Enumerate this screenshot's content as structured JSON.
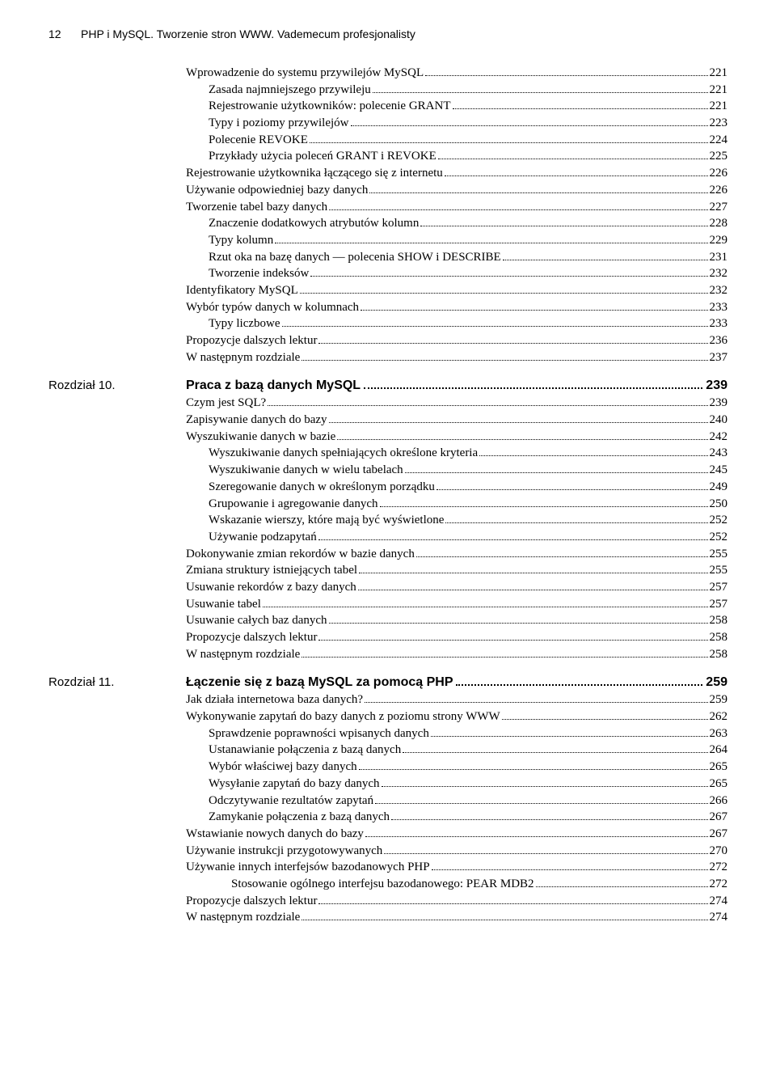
{
  "header": {
    "page_number": "12",
    "title": "PHP i MySQL. Tworzenie stron WWW. Vademecum profesjonalisty"
  },
  "sections": [
    {
      "chapter_label": "",
      "heading": null,
      "entries": [
        {
          "indent": 0,
          "text": "Wprowadzenie do systemu przywilejów MySQL",
          "page": "221"
        },
        {
          "indent": 1,
          "text": "Zasada najmniejszego przywileju",
          "page": "221"
        },
        {
          "indent": 1,
          "text": "Rejestrowanie użytkowników: polecenie GRANT",
          "page": "221"
        },
        {
          "indent": 1,
          "text": "Typy i poziomy przywilejów",
          "page": "223"
        },
        {
          "indent": 1,
          "text": "Polecenie REVOKE",
          "page": "224"
        },
        {
          "indent": 1,
          "text": "Przykłady użycia poleceń GRANT i REVOKE",
          "page": "225"
        },
        {
          "indent": 0,
          "text": "Rejestrowanie użytkownika łączącego się z internetu",
          "page": "226"
        },
        {
          "indent": 0,
          "text": "Używanie odpowiedniej bazy danych",
          "page": "226"
        },
        {
          "indent": 0,
          "text": "Tworzenie tabel bazy danych",
          "page": "227"
        },
        {
          "indent": 1,
          "text": "Znaczenie dodatkowych atrybutów kolumn",
          "page": "228"
        },
        {
          "indent": 1,
          "text": "Typy kolumn",
          "page": "229"
        },
        {
          "indent": 1,
          "text": "Rzut oka na bazę danych — polecenia SHOW i DESCRIBE",
          "page": "231"
        },
        {
          "indent": 1,
          "text": "Tworzenie indeksów",
          "page": "232"
        },
        {
          "indent": 0,
          "text": "Identyfikatory MySQL",
          "page": "232"
        },
        {
          "indent": 0,
          "text": "Wybór typów danych w kolumnach",
          "page": "233"
        },
        {
          "indent": 1,
          "text": "Typy liczbowe",
          "page": "233"
        },
        {
          "indent": 0,
          "text": "Propozycje dalszych lektur",
          "page": "236"
        },
        {
          "indent": 0,
          "text": "W następnym rozdziale",
          "page": "237"
        }
      ]
    },
    {
      "chapter_label": "Rozdział 10.",
      "heading": {
        "title": "Praca z bazą danych MySQL",
        "page": "239"
      },
      "entries": [
        {
          "indent": 0,
          "text": "Czym jest SQL?",
          "page": "239"
        },
        {
          "indent": 0,
          "text": "Zapisywanie danych do bazy",
          "page": "240"
        },
        {
          "indent": 0,
          "text": "Wyszukiwanie danych w bazie",
          "page": "242"
        },
        {
          "indent": 1,
          "text": "Wyszukiwanie danych spełniających określone kryteria",
          "page": "243"
        },
        {
          "indent": 1,
          "text": "Wyszukiwanie danych w wielu tabelach",
          "page": "245"
        },
        {
          "indent": 1,
          "text": "Szeregowanie danych w określonym porządku",
          "page": "249"
        },
        {
          "indent": 1,
          "text": "Grupowanie i agregowanie danych",
          "page": "250"
        },
        {
          "indent": 1,
          "text": "Wskazanie wierszy, które mają być wyświetlone",
          "page": "252"
        },
        {
          "indent": 1,
          "text": "Używanie podzapytań",
          "page": "252"
        },
        {
          "indent": 0,
          "text": "Dokonywanie zmian rekordów w bazie danych",
          "page": "255"
        },
        {
          "indent": 0,
          "text": "Zmiana struktury istniejących tabel",
          "page": "255"
        },
        {
          "indent": 0,
          "text": "Usuwanie rekordów z bazy danych",
          "page": "257"
        },
        {
          "indent": 0,
          "text": "Usuwanie tabel",
          "page": "257"
        },
        {
          "indent": 0,
          "text": "Usuwanie całych baz danych",
          "page": "258"
        },
        {
          "indent": 0,
          "text": "Propozycje dalszych lektur",
          "page": "258"
        },
        {
          "indent": 0,
          "text": "W następnym rozdziale",
          "page": "258"
        }
      ]
    },
    {
      "chapter_label": "Rozdział 11.",
      "heading": {
        "title": "Łączenie się z bazą MySQL za pomocą PHP",
        "page": "259"
      },
      "entries": [
        {
          "indent": 0,
          "text": "Jak działa internetowa baza danych?",
          "page": "259"
        },
        {
          "indent": 0,
          "text": "Wykonywanie zapytań do bazy danych z poziomu strony WWW",
          "page": "262"
        },
        {
          "indent": 1,
          "text": "Sprawdzenie poprawności wpisanych danych",
          "page": "263"
        },
        {
          "indent": 1,
          "text": "Ustanawianie połączenia z bazą danych",
          "page": "264"
        },
        {
          "indent": 1,
          "text": "Wybór właściwej bazy danych",
          "page": "265"
        },
        {
          "indent": 1,
          "text": "Wysyłanie zapytań do bazy danych",
          "page": "265"
        },
        {
          "indent": 1,
          "text": "Odczytywanie rezultatów zapytań",
          "page": "266"
        },
        {
          "indent": 1,
          "text": "Zamykanie połączenia z bazą danych",
          "page": "267"
        },
        {
          "indent": 0,
          "text": "Wstawianie nowych danych do bazy",
          "page": "267"
        },
        {
          "indent": 0,
          "text": "Używanie instrukcji przygotowywanych",
          "page": "270"
        },
        {
          "indent": 0,
          "text": "Używanie innych interfejsów bazodanowych PHP",
          "page": "272"
        },
        {
          "indent": 2,
          "text": "Stosowanie ogólnego interfejsu bazodanowego: PEAR MDB2",
          "page": "272"
        },
        {
          "indent": 0,
          "text": "Propozycje dalszych lektur",
          "page": "274"
        },
        {
          "indent": 0,
          "text": "W następnym rozdziale",
          "page": "274"
        }
      ]
    }
  ]
}
